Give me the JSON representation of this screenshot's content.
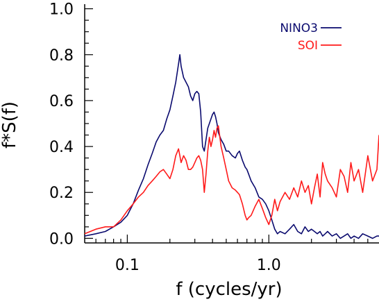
{
  "chart_data": {
    "type": "line",
    "title": "",
    "xlabel": "f (cycles/yr)",
    "ylabel": "f*S(f)",
    "xscale": "log",
    "xlim": [
      0.05,
      6.0
    ],
    "ylim": [
      -0.02,
      1.02
    ],
    "x_ticks": [
      {
        "value": 0.1,
        "label": "0.1"
      },
      {
        "value": 1.0,
        "label": "1.0"
      }
    ],
    "y_ticks": [
      {
        "value": 0.0,
        "label": "0.0"
      },
      {
        "value": 0.2,
        "label": "0.2"
      },
      {
        "value": 0.4,
        "label": "0.4"
      },
      {
        "value": 0.6,
        "label": "0.6"
      },
      {
        "value": 0.8,
        "label": "0.8"
      },
      {
        "value": 1.0,
        "label": "1.0"
      }
    ],
    "grid": false,
    "legend": "top-right",
    "series": [
      {
        "name": "NINO3",
        "color": "#0a0a6e",
        "x": [
          0.05,
          0.06,
          0.07,
          0.08,
          0.09,
          0.1,
          0.11,
          0.12,
          0.13,
          0.14,
          0.15,
          0.16,
          0.17,
          0.18,
          0.19,
          0.2,
          0.21,
          0.22,
          0.23,
          0.235,
          0.24,
          0.25,
          0.26,
          0.27,
          0.28,
          0.29,
          0.3,
          0.31,
          0.32,
          0.33,
          0.34,
          0.35,
          0.36,
          0.37,
          0.38,
          0.39,
          0.4,
          0.41,
          0.42,
          0.43,
          0.44,
          0.46,
          0.48,
          0.5,
          0.52,
          0.55,
          0.58,
          0.6,
          0.62,
          0.65,
          0.68,
          0.7,
          0.72,
          0.75,
          0.8,
          0.85,
          0.9,
          0.95,
          1.0,
          1.05,
          1.1,
          1.15,
          1.2,
          1.3,
          1.4,
          1.5,
          1.6,
          1.7,
          1.8,
          1.9,
          2.0,
          2.1,
          2.2,
          2.3,
          2.4,
          2.5,
          2.6,
          2.8,
          3.0,
          3.2,
          3.4,
          3.6,
          3.8,
          4.0,
          4.3,
          4.6,
          5.0,
          5.4,
          5.8,
          6.0
        ],
        "y": [
          0.01,
          0.02,
          0.03,
          0.05,
          0.07,
          0.1,
          0.15,
          0.21,
          0.26,
          0.32,
          0.37,
          0.42,
          0.45,
          0.47,
          0.52,
          0.56,
          0.62,
          0.68,
          0.76,
          0.8,
          0.75,
          0.7,
          0.68,
          0.66,
          0.62,
          0.6,
          0.63,
          0.64,
          0.63,
          0.55,
          0.4,
          0.38,
          0.43,
          0.48,
          0.5,
          0.52,
          0.54,
          0.55,
          0.53,
          0.5,
          0.46,
          0.43,
          0.41,
          0.38,
          0.38,
          0.36,
          0.35,
          0.37,
          0.38,
          0.34,
          0.31,
          0.3,
          0.28,
          0.25,
          0.22,
          0.18,
          0.17,
          0.15,
          0.12,
          0.08,
          0.04,
          0.02,
          0.03,
          0.02,
          0.04,
          0.06,
          0.03,
          0.02,
          0.05,
          0.03,
          0.04,
          0.03,
          0.02,
          0.03,
          0.01,
          0.02,
          0.03,
          0.01,
          0.02,
          0.0,
          0.01,
          0.02,
          0.0,
          0.01,
          0.0,
          0.02,
          0.01,
          0.0,
          0.01,
          0.01
        ]
      },
      {
        "name": "SOI",
        "color": "#ff1a1a",
        "x": [
          0.05,
          0.06,
          0.07,
          0.08,
          0.09,
          0.1,
          0.11,
          0.12,
          0.13,
          0.14,
          0.15,
          0.16,
          0.17,
          0.18,
          0.19,
          0.2,
          0.21,
          0.22,
          0.23,
          0.235,
          0.24,
          0.25,
          0.26,
          0.27,
          0.28,
          0.29,
          0.3,
          0.31,
          0.32,
          0.33,
          0.34,
          0.35,
          0.36,
          0.37,
          0.38,
          0.39,
          0.4,
          0.41,
          0.42,
          0.43,
          0.44,
          0.46,
          0.48,
          0.5,
          0.52,
          0.55,
          0.58,
          0.6,
          0.62,
          0.65,
          0.68,
          0.7,
          0.72,
          0.75,
          0.8,
          0.85,
          0.9,
          0.95,
          1.0,
          1.05,
          1.1,
          1.15,
          1.2,
          1.3,
          1.4,
          1.5,
          1.6,
          1.7,
          1.8,
          1.9,
          2.0,
          2.1,
          2.2,
          2.3,
          2.4,
          2.5,
          2.6,
          2.8,
          3.0,
          3.2,
          3.4,
          3.6,
          3.8,
          4.0,
          4.3,
          4.6,
          5.0,
          5.4,
          5.8,
          6.0
        ],
        "y": [
          0.02,
          0.04,
          0.05,
          0.05,
          0.08,
          0.12,
          0.15,
          0.18,
          0.2,
          0.23,
          0.25,
          0.27,
          0.29,
          0.3,
          0.28,
          0.26,
          0.3,
          0.36,
          0.39,
          0.36,
          0.33,
          0.36,
          0.34,
          0.3,
          0.3,
          0.31,
          0.33,
          0.35,
          0.36,
          0.34,
          0.3,
          0.2,
          0.28,
          0.38,
          0.44,
          0.4,
          0.43,
          0.47,
          0.44,
          0.48,
          0.49,
          0.4,
          0.35,
          0.3,
          0.25,
          0.22,
          0.21,
          0.2,
          0.19,
          0.15,
          0.1,
          0.08,
          0.09,
          0.1,
          0.14,
          0.17,
          0.13,
          0.09,
          0.06,
          0.1,
          0.17,
          0.12,
          0.16,
          0.2,
          0.17,
          0.22,
          0.18,
          0.25,
          0.2,
          0.23,
          0.15,
          0.22,
          0.28,
          0.18,
          0.33,
          0.28,
          0.25,
          0.22,
          0.18,
          0.3,
          0.27,
          0.2,
          0.33,
          0.25,
          0.3,
          0.2,
          0.36,
          0.25,
          0.3,
          0.45
        ]
      }
    ]
  }
}
